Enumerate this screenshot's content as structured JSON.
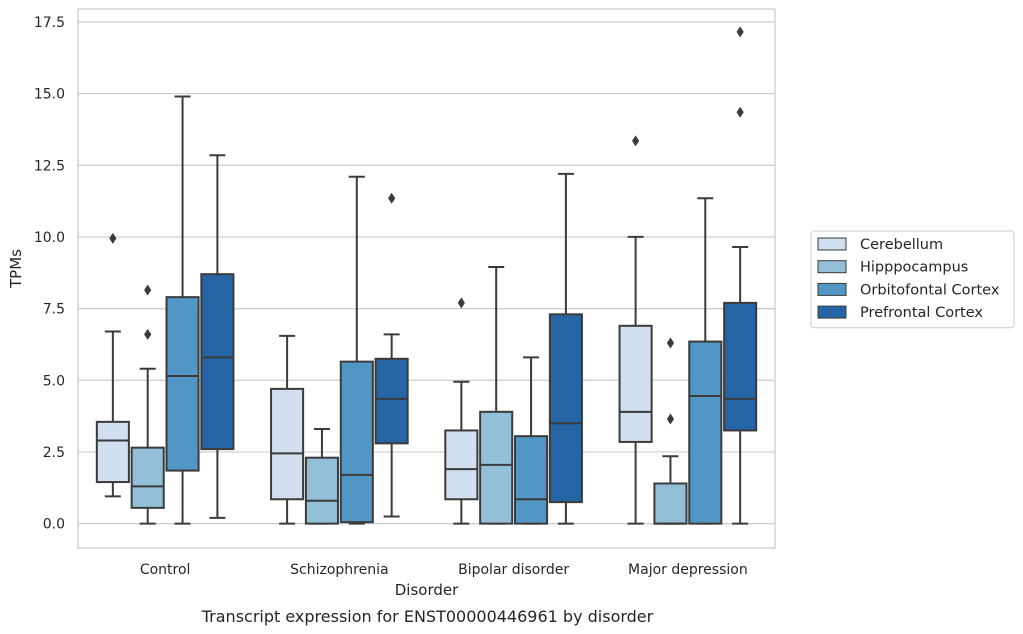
{
  "chart_data": {
    "type": "box",
    "caption": "Transcript expression for ENST00000446961 by disorder",
    "xlabel": "Disorder",
    "ylabel": "TPMs",
    "ylim": [
      -0.85,
      17.95
    ],
    "yticks": [
      "0.0",
      "2.5",
      "5.0",
      "7.5",
      "10.0",
      "12.5",
      "15.0",
      "17.5"
    ],
    "ytick_values": [
      0,
      2.5,
      5,
      7.5,
      10,
      12.5,
      15,
      17.5
    ],
    "grid": "horizontal",
    "legend_position": "right",
    "categories": [
      "Control",
      "Schizophrenia",
      "Bipolar disorder",
      "Major depression"
    ],
    "series": [
      {
        "name": "Cerebellum",
        "color": "#d1e0f0",
        "boxes": [
          {
            "whislo": 0.95,
            "q1": 1.45,
            "med": 2.9,
            "q3": 3.55,
            "whishi": 6.7,
            "fliers": [
              9.95
            ]
          },
          {
            "whislo": 0.0,
            "q1": 0.85,
            "med": 2.45,
            "q3": 4.7,
            "whishi": 6.55,
            "fliers": []
          },
          {
            "whislo": 0.0,
            "q1": 0.85,
            "med": 1.9,
            "q3": 3.25,
            "whishi": 4.95,
            "fliers": [
              7.7
            ]
          },
          {
            "whislo": 0.0,
            "q1": 2.85,
            "med": 3.9,
            "q3": 6.9,
            "whishi": 10.0,
            "fliers": [
              13.35
            ]
          }
        ]
      },
      {
        "name": "Hipppocampus",
        "color": "#93bfd9",
        "boxes": [
          {
            "whislo": 0.0,
            "q1": 0.55,
            "med": 1.3,
            "q3": 2.65,
            "whishi": 5.4,
            "fliers": [
              6.6,
              8.15
            ]
          },
          {
            "whislo": 0.0,
            "q1": 0.0,
            "med": 0.8,
            "q3": 2.3,
            "whishi": 3.3,
            "fliers": []
          },
          {
            "whislo": 0.0,
            "q1": 0.0,
            "med": 2.05,
            "q3": 3.9,
            "whishi": 8.95,
            "fliers": []
          },
          {
            "whislo": 0.0,
            "q1": 0.0,
            "med": 0.0,
            "q3": 1.4,
            "whishi": 2.35,
            "fliers": [
              3.65,
              6.3
            ]
          }
        ]
      },
      {
        "name": "Orbitofontal Cortex",
        "color": "#5196c4",
        "boxes": [
          {
            "whislo": 0.0,
            "q1": 1.85,
            "med": 5.15,
            "q3": 7.9,
            "whishi": 14.9,
            "fliers": []
          },
          {
            "whislo": 0.0,
            "q1": 0.05,
            "med": 1.7,
            "q3": 5.65,
            "whishi": 12.1,
            "fliers": []
          },
          {
            "whislo": 0.0,
            "q1": 0.0,
            "med": 0.85,
            "q3": 3.05,
            "whishi": 5.8,
            "fliers": []
          },
          {
            "whislo": 0.0,
            "q1": 0.0,
            "med": 4.45,
            "q3": 6.35,
            "whishi": 11.35,
            "fliers": []
          }
        ]
      },
      {
        "name": "Prefrontal Cortex",
        "color": "#2565a6",
        "boxes": [
          {
            "whislo": 0.2,
            "q1": 2.6,
            "med": 5.8,
            "q3": 8.7,
            "whishi": 12.85,
            "fliers": []
          },
          {
            "whislo": 0.25,
            "q1": 2.8,
            "med": 4.35,
            "q3": 5.75,
            "whishi": 6.6,
            "fliers": [
              11.35
            ]
          },
          {
            "whislo": 0.0,
            "q1": 0.75,
            "med": 3.5,
            "q3": 7.3,
            "whishi": 12.2,
            "fliers": []
          },
          {
            "whislo": 0.0,
            "q1": 3.25,
            "med": 4.35,
            "q3": 7.7,
            "whishi": 9.65,
            "fliers": [
              14.35,
              17.15
            ]
          }
        ]
      }
    ]
  }
}
